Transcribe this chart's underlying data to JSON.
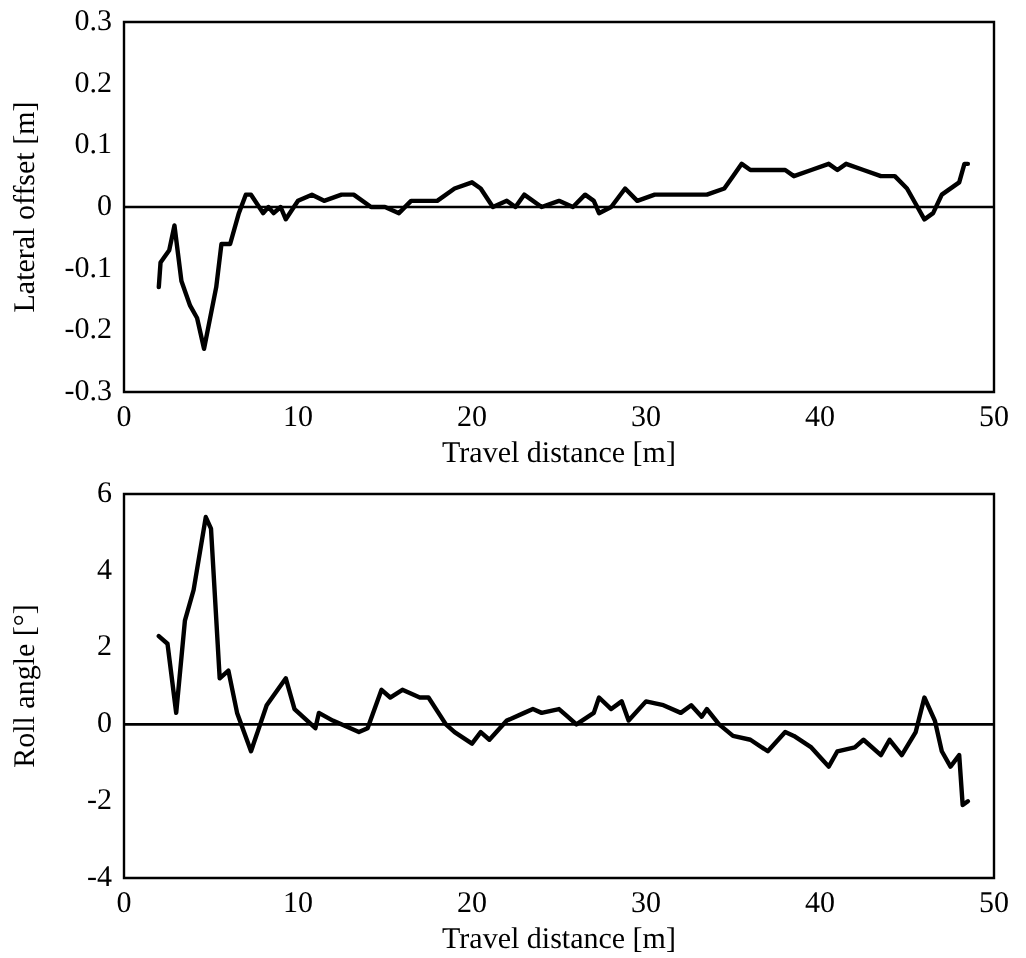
{
  "chart_data": [
    {
      "type": "line",
      "xlabel": "Travel distance [m]",
      "ylabel": "Lateral offset [m]",
      "xlim": [
        0,
        50
      ],
      "xticks": [
        0,
        10,
        20,
        30,
        40,
        50
      ],
      "ylim": [
        -0.3,
        0.3
      ],
      "yticks": [
        -0.3,
        -0.2,
        -0.1,
        0,
        0.1,
        0.2,
        0.3
      ],
      "grid": false,
      "legend": false,
      "marker": "none",
      "line_style": "solid",
      "ref_lines": [
        {
          "axis": "y",
          "value": 0,
          "color": "#000000"
        }
      ],
      "series": [
        {
          "color": "#000000",
          "x": [
            2.0,
            2.1,
            2.6,
            2.9,
            3.3,
            3.8,
            4.2,
            4.6,
            5.3,
            5.6,
            6.1,
            6.6,
            7.0,
            7.3,
            8.0,
            8.3,
            8.6,
            9.0,
            9.3,
            10,
            10.8,
            11.5,
            12.5,
            13.2,
            14.2,
            15,
            15.8,
            16.5,
            18,
            19,
            20,
            20.5,
            21.2,
            22,
            22.5,
            23,
            24,
            25,
            25.8,
            26.5,
            27,
            27.3,
            28,
            28.8,
            29.5,
            30.5,
            32,
            33.5,
            34.5,
            35,
            35.5,
            36,
            37,
            38,
            38.5,
            39.5,
            40.5,
            41,
            41.5,
            42.5,
            43.5,
            44.3,
            45,
            45.6,
            46,
            46.5,
            47,
            48,
            48.3,
            48.5
          ],
          "values": [
            -0.13,
            -0.09,
            -0.07,
            -0.03,
            -0.12,
            -0.16,
            -0.18,
            -0.23,
            -0.13,
            -0.06,
            -0.06,
            -0.01,
            0.02,
            0.02,
            -0.01,
            0.0,
            -0.01,
            0.0,
            -0.02,
            0.01,
            0.02,
            0.01,
            0.02,
            0.02,
            0.0,
            0.0,
            -0.01,
            0.01,
            0.01,
            0.03,
            0.04,
            0.03,
            0.0,
            0.01,
            0.0,
            0.02,
            0.0,
            0.01,
            0.0,
            0.02,
            0.01,
            -0.01,
            0.0,
            0.03,
            0.01,
            0.02,
            0.02,
            0.02,
            0.03,
            0.05,
            0.07,
            0.06,
            0.06,
            0.06,
            0.05,
            0.06,
            0.07,
            0.06,
            0.07,
            0.06,
            0.05,
            0.05,
            0.03,
            0.0,
            -0.02,
            -0.01,
            0.02,
            0.04,
            0.07,
            0.07
          ]
        }
      ]
    },
    {
      "type": "line",
      "xlabel": "Travel distance [m]",
      "ylabel": "Roll angle [°]",
      "xlim": [
        0,
        50
      ],
      "xticks": [
        0,
        10,
        20,
        30,
        40,
        50
      ],
      "ylim": [
        -4,
        6
      ],
      "yticks": [
        -4,
        -2,
        0,
        2,
        4,
        6
      ],
      "grid": false,
      "legend": false,
      "marker": "none",
      "line_style": "solid",
      "ref_lines": [
        {
          "axis": "y",
          "value": 0,
          "color": "#000000"
        }
      ],
      "series": [
        {
          "color": "#000000",
          "x": [
            2.0,
            2.5,
            3.0,
            3.5,
            4.0,
            4.7,
            5.0,
            5.5,
            6,
            6.5,
            7.3,
            8.2,
            9.3,
            9.8,
            11,
            11.2,
            12,
            13.5,
            14,
            14.8,
            15.3,
            16,
            17,
            17.5,
            18.5,
            19,
            20,
            20.5,
            21,
            22,
            23,
            23.5,
            24,
            25,
            25.5,
            26,
            27,
            27.3,
            28,
            28.6,
            29,
            30,
            31,
            32,
            32.6,
            33.2,
            33.5,
            34.2,
            35,
            36,
            37,
            38,
            38.5,
            39.5,
            40.5,
            41,
            42,
            42.5,
            43.5,
            44,
            44.7,
            45.5,
            46,
            46.6,
            47,
            47.5,
            48,
            48.2,
            48.5
          ],
          "values": [
            2.3,
            2.1,
            0.3,
            2.7,
            3.5,
            5.4,
            5.1,
            1.2,
            1.4,
            0.3,
            -0.7,
            0.5,
            1.2,
            0.4,
            -0.1,
            0.3,
            0.1,
            -0.2,
            -0.1,
            0.9,
            0.7,
            0.9,
            0.7,
            0.7,
            0.0,
            -0.2,
            -0.5,
            -0.2,
            -0.4,
            0.1,
            0.3,
            0.4,
            0.3,
            0.4,
            0.2,
            0.0,
            0.3,
            0.7,
            0.4,
            0.6,
            0.1,
            0.6,
            0.5,
            0.3,
            0.5,
            0.2,
            0.4,
            0.0,
            -0.3,
            -0.4,
            -0.7,
            -0.2,
            -0.3,
            -0.6,
            -1.1,
            -0.7,
            -0.6,
            -0.4,
            -0.8,
            -0.4,
            -0.8,
            -0.2,
            0.7,
            0.1,
            -0.7,
            -1.1,
            -0.8,
            -2.1,
            -2.0
          ]
        }
      ]
    }
  ]
}
